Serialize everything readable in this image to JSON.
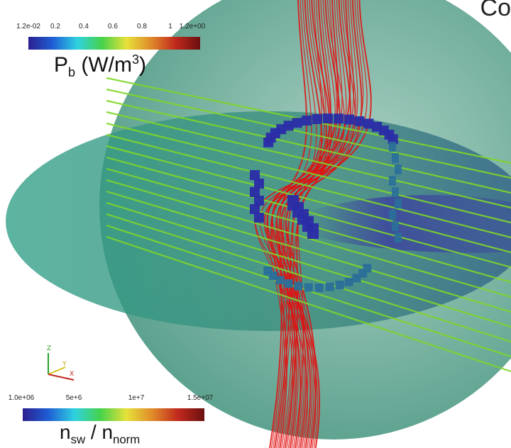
{
  "corner_title": "Co",
  "top_colorbar": {
    "ticks": [
      "1.2e-02",
      "0.2",
      "0.4",
      "0.6",
      "0.8",
      "1",
      "1.2e+00"
    ],
    "title_base": "P",
    "title_sub": "b",
    "title_units_open": " (W/m",
    "title_units_sup": "3",
    "title_units_close": ")",
    "colors": [
      "#2b1f8f",
      "#1f5fd6",
      "#2fd2e0",
      "#46d24a",
      "#e7e13a",
      "#e08a2a",
      "#c0281d",
      "#6b1010"
    ]
  },
  "bottom_colorbar": {
    "ticks": [
      "1.0e+06",
      "5e+6",
      "1e+7",
      "1.5e+07"
    ],
    "title_n1": "n",
    "title_sub1": "sw",
    "title_sep": " / ",
    "title_n2": "n",
    "title_sub2": "norm",
    "colors": [
      "#2b1f8f",
      "#1f5fd6",
      "#2fd2e0",
      "#46d24a",
      "#e7e13a",
      "#e08a2a",
      "#c0281d",
      "#6b1010"
    ]
  },
  "axes_triad": {
    "z": "Z",
    "y": "Y",
    "x": "X"
  },
  "scene_colors": {
    "sphere": "#3f8f78",
    "disk": "#2f9f86",
    "field_lines": "#e01010",
    "solar_wind_lines": "#7fd62a",
    "blocks_dark": "#2a2ca8",
    "blocks_teal": "#2a6f9a"
  }
}
